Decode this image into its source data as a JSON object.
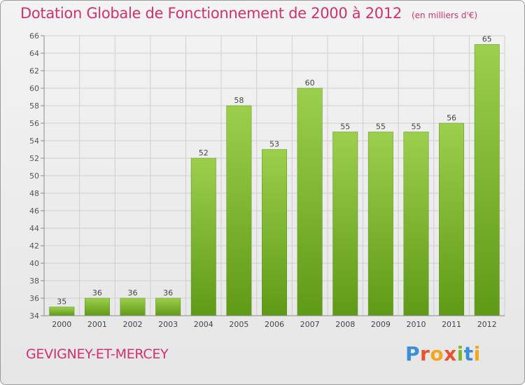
{
  "header": {
    "title": "Dotation Globale de Fonctionnement de 2000 à 2012",
    "subtitle": "(en milliers d'€)"
  },
  "footer": {
    "location": "GEVIGNEY-ET-MERCEY",
    "logo_text": "Proxiti"
  },
  "colors": {
    "title": "#d0306e",
    "bar_top": "#9ccf4c",
    "bar_bottom": "#5f9a16",
    "grid": "#cfcfcf",
    "axis": "#8a8a8a"
  },
  "chart_data": {
    "type": "bar",
    "title": "Dotation Globale de Fonctionnement de 2000 à 2012",
    "subtitle": "(en milliers d'€)",
    "xlabel": "",
    "ylabel": "",
    "categories": [
      "2000",
      "2001",
      "2002",
      "2003",
      "2004",
      "2005",
      "2006",
      "2007",
      "2008",
      "2009",
      "2010",
      "2011",
      "2012"
    ],
    "values": [
      35,
      36,
      36,
      36,
      52,
      58,
      53,
      60,
      55,
      55,
      55,
      56,
      65
    ],
    "ylim": [
      34,
      66
    ],
    "yticks": [
      34,
      36,
      38,
      40,
      42,
      44,
      46,
      48,
      50,
      52,
      54,
      56,
      58,
      60,
      62,
      64,
      66
    ],
    "grid": true,
    "legend": "none"
  }
}
